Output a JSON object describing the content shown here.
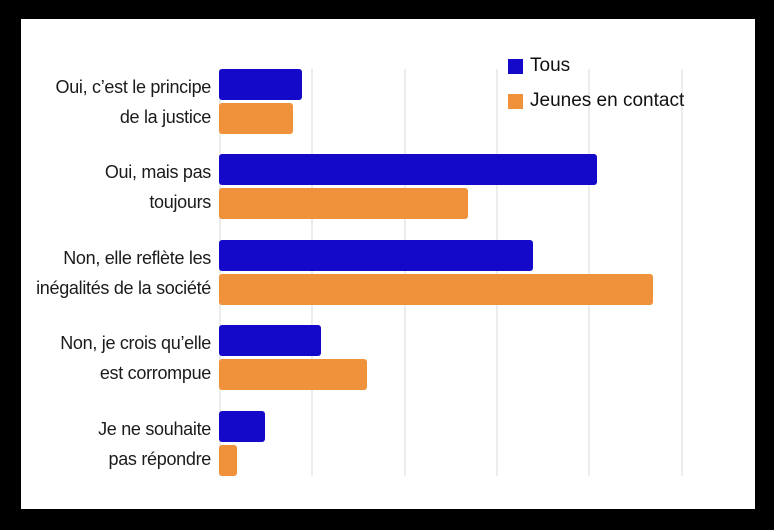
{
  "frame_color": "#000000",
  "panel_color": "#ffffff",
  "text_color": "#1b1b1b",
  "gridline_color": "#ececec",
  "legend": {
    "items": [
      {
        "label": "Tous",
        "color": "#1409C8"
      },
      {
        "label": "Jeunes en contact",
        "color": "#F0913C"
      }
    ]
  },
  "categories": [
    {
      "lines": [
        "Oui, c’est le principe",
        "de la justice"
      ]
    },
    {
      "lines": [
        "Oui, mais pas",
        "toujours"
      ]
    },
    {
      "lines": [
        "Non, elle reflète les",
        "inégalités de la société"
      ]
    },
    {
      "lines": [
        "Non, je crois qu’elle",
        "est corrompue"
      ]
    },
    {
      "lines": [
        "Je ne souhaite",
        "pas répondre"
      ]
    }
  ],
  "chart_data": {
    "type": "bar",
    "orientation": "horizontal",
    "categories": [
      "Oui, c’est le principe de la justice",
      "Oui, mais pas toujours",
      "Non, elle reflète les inégalités de la société",
      "Non, je crois qu’elle est corrompue",
      "Je ne souhaite pas répondre"
    ],
    "series": [
      {
        "name": "Tous",
        "color": "#1409C8",
        "values": [
          9,
          41,
          34,
          11,
          5
        ]
      },
      {
        "name": "Jeunes en contact",
        "color": "#F0913C",
        "values": [
          8,
          27,
          47,
          16,
          2
        ]
      }
    ],
    "xlim": [
      0,
      50
    ],
    "gridline_interval": 10,
    "grid": true,
    "axis_tick_labels_visible": false,
    "legend_position": "top-right"
  }
}
